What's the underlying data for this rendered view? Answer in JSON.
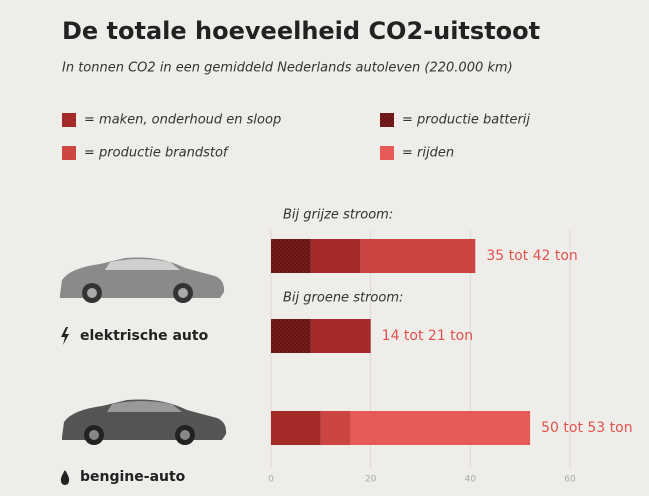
{
  "chart_data": {
    "type": "stacked-barh",
    "title": "De totale hoeveelheid CO2-uitstoot",
    "subtitle": "In tonnen CO2 in een gemiddeld Nederlands autoleven (220.000 km)",
    "categories": [
      "Bij grijze stroom:",
      "Bij groene stroom:",
      null
    ],
    "groups": [
      "elektrische auto",
      "bengine-auto"
    ],
    "annotations": [
      "35 tot 42 ton",
      "14 tot 21 ton",
      "50 tot 53 ton"
    ],
    "series": [
      {
        "name": "= productie batterij",
        "color": "#7a1c1c",
        "hatched": true,
        "values": [
          8,
          8,
          null
        ]
      },
      {
        "name": "= maken, onderhoud en sloop",
        "color": "#a52b2b",
        "values": [
          10,
          12,
          10
        ]
      },
      {
        "name": "= productie brandstof",
        "color": "#cc4540",
        "values": [
          23,
          null,
          6
        ]
      },
      {
        "name": "= rijden",
        "color": "#e85a55",
        "values": [
          null,
          null,
          36
        ]
      }
    ],
    "xlim": [
      0,
      60
    ],
    "xticks": [
      0,
      20,
      40,
      60
    ],
    "grid": true
  }
}
